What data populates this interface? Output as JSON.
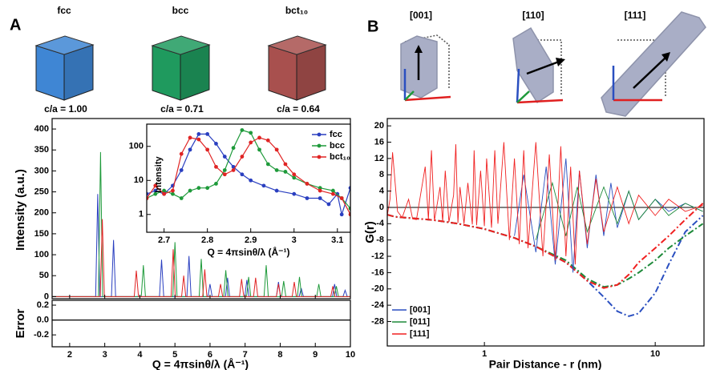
{
  "panel_labels": [
    "A",
    "B"
  ],
  "structures": [
    {
      "name": "fcc",
      "ratio": "c/a = 1.00",
      "color": "#3f86d4"
    },
    {
      "name": "bcc",
      "ratio": "c/a = 0.71",
      "color": "#1f9a5e"
    },
    {
      "name": "bct₁₀",
      "ratio": "c/a = 0.64",
      "color": "#a8504e"
    }
  ],
  "orientations": [
    "[001]",
    "[110]",
    "[111]"
  ],
  "chart_data": [
    {
      "type": "line",
      "y_label": "Intensity (a.u.)",
      "xlim": [
        1.5,
        10
      ],
      "ylim": [
        -5,
        425
      ],
      "yticks": [
        0,
        50,
        100,
        150,
        200,
        250,
        300,
        350,
        400
      ],
      "series": [
        {
          "color": "#2a3fc0",
          "x": [
            1.5,
            2.74,
            2.8,
            2.86,
            3.19,
            3.25,
            3.31,
            4.56,
            4.62,
            4.68,
            5.34,
            5.4,
            5.46,
            5.94,
            6.0,
            6.06,
            6.44,
            6.5,
            6.56,
            6.99,
            7.05,
            7.11,
            7.89,
            7.95,
            8.01,
            8.54,
            8.6,
            8.66,
            9.49,
            9.55,
            9.61,
            9.79,
            9.85,
            9.91,
            10
          ],
          "values": [
            0,
            0,
            245,
            0,
            0,
            135,
            0,
            0,
            88,
            0,
            0,
            97,
            0,
            0,
            30,
            0,
            0,
            45,
            0,
            0,
            40,
            0,
            0,
            35,
            0,
            0,
            20,
            0,
            0,
            30,
            0,
            0,
            15,
            0,
            0
          ]
        },
        {
          "color": "#1e9a3a",
          "x": [
            1.5,
            2.82,
            2.88,
            2.94,
            4.04,
            4.1,
            4.16,
            4.94,
            5.0,
            5.06,
            5.69,
            5.75,
            5.81,
            6.39,
            6.45,
            6.51,
            7.04,
            7.1,
            7.16,
            7.54,
            7.6,
            7.66,
            8.04,
            8.1,
            8.16,
            8.49,
            8.55,
            8.61,
            9.04,
            9.1,
            9.16,
            9.54,
            9.6,
            9.66,
            10
          ],
          "values": [
            0,
            0,
            345,
            0,
            0,
            75,
            0,
            0,
            130,
            0,
            0,
            90,
            0,
            0,
            63,
            0,
            0,
            47,
            0,
            0,
            75,
            0,
            0,
            37,
            0,
            0,
            47,
            0,
            0,
            30,
            0,
            0,
            25,
            0,
            0
          ]
        },
        {
          "color": "#e02424",
          "x": [
            1.5,
            2.87,
            2.93,
            2.99,
            3.84,
            3.9,
            3.96,
            4.89,
            4.95,
            5.01,
            5.19,
            5.25,
            5.31,
            5.79,
            5.85,
            5.91,
            6.24,
            6.3,
            6.36,
            6.84,
            6.9,
            6.96,
            7.24,
            7.3,
            7.36,
            7.89,
            7.95,
            8.01,
            8.34,
            8.4,
            8.46,
            9.44,
            9.5,
            9.56,
            10
          ],
          "values": [
            0,
            0,
            185,
            0,
            0,
            62,
            0,
            0,
            113,
            0,
            0,
            50,
            0,
            0,
            65,
            0,
            0,
            30,
            0,
            0,
            42,
            0,
            0,
            45,
            0,
            0,
            30,
            0,
            0,
            35,
            0,
            0,
            25,
            0,
            0
          ]
        }
      ]
    },
    {
      "type": "line",
      "x_label": "Q = 4πsinθ/λ (Å⁻¹)",
      "y_label": "Error",
      "xlim": [
        1.5,
        10
      ],
      "xticks": [
        2,
        3,
        4,
        5,
        6,
        7,
        8,
        9,
        10
      ],
      "ylim": [
        -0.36,
        0.265
      ],
      "yticks": [
        0.2,
        {
          "value": 0,
          "label": "0.0"
        },
        -0.2
      ],
      "series": [
        {
          "color": "#000000",
          "x": [
            1.5,
            10
          ],
          "values": [
            0,
            0
          ]
        }
      ]
    },
    {
      "type": "line",
      "x_label": "Q = 4πsinθ/λ (Å⁻¹)",
      "y_label": "Intensity",
      "ylog": true,
      "markers": true,
      "xlim": [
        2.66,
        3.13
      ],
      "xticks": [
        2.7,
        2.8,
        2.9,
        3.0,
        3.1
      ],
      "ylim": [
        0.3,
        450
      ],
      "yticks": [
        1,
        10,
        100
      ],
      "legend": "upper right",
      "series": [
        {
          "name": "fcc",
          "color": "#2a3fc0",
          "x": [
            2.66,
            2.68,
            2.7,
            2.72,
            2.74,
            2.76,
            2.78,
            2.8,
            2.82,
            2.84,
            2.86,
            2.88,
            2.9,
            2.93,
            2.96,
            3.0,
            3.03,
            3.06,
            3.08,
            3.1,
            3.11,
            3.13
          ],
          "values": [
            4,
            5,
            4,
            7,
            20,
            80,
            230,
            230,
            120,
            50,
            25,
            15,
            10,
            7,
            5,
            4,
            3,
            3,
            2,
            4,
            1,
            6
          ]
        },
        {
          "name": "bcc",
          "color": "#1e9a3a",
          "x": [
            2.66,
            2.68,
            2.7,
            2.72,
            2.74,
            2.76,
            2.78,
            2.8,
            2.82,
            2.84,
            2.86,
            2.88,
            2.9,
            2.92,
            2.94,
            2.96,
            2.98,
            3.0,
            3.03,
            3.06,
            3.09,
            3.11,
            3.13
          ],
          "values": [
            3,
            4,
            5,
            4,
            3,
            5,
            6,
            6,
            8,
            20,
            90,
            300,
            250,
            80,
            30,
            20,
            18,
            12,
            8,
            6,
            5,
            3,
            1.5
          ]
        },
        {
          "name": "bct₁₀",
          "color": "#e02424",
          "x": [
            2.66,
            2.68,
            2.7,
            2.72,
            2.74,
            2.76,
            2.78,
            2.8,
            2.82,
            2.84,
            2.86,
            2.88,
            2.9,
            2.92,
            2.94,
            2.96,
            2.98,
            3.0,
            3.03,
            3.06,
            3.09,
            3.11,
            3.13
          ],
          "values": [
            3,
            7,
            4,
            5,
            60,
            180,
            160,
            80,
            25,
            15,
            20,
            50,
            130,
            180,
            150,
            80,
            30,
            15,
            8,
            5,
            4,
            3,
            1
          ]
        }
      ]
    },
    {
      "type": "line",
      "x_label": "Pair Distance - r (nm)",
      "y_label": "G(r)",
      "xlog": true,
      "xlim": [
        0.27,
        19.3
      ],
      "xticks": [
        1,
        10
      ],
      "ylim": [
        -34,
        21.8
      ],
      "yticks": [
        20,
        16,
        12,
        8,
        4,
        0,
        -4,
        -8,
        -12,
        -16,
        -20,
        -24,
        -28
      ],
      "legend": "lower left",
      "baseline_x": [
        0.27,
        0.3,
        0.5,
        0.7,
        1,
        1.5,
        2,
        3,
        4,
        5,
        6,
        7,
        8,
        10,
        12,
        15,
        19
      ],
      "series": [
        {
          "name": "[001]",
          "color": "#2a4fc0",
          "x": [
            1.5,
            1.7,
            2,
            2.3,
            2.6,
            3,
            3.3,
            3.6,
            4,
            4.5,
            5,
            5.5,
            6,
            7,
            8,
            10,
            12,
            15,
            19
          ],
          "values": [
            -7,
            8,
            -11,
            10,
            -14,
            12,
            -16,
            9,
            -10,
            8,
            -7,
            6,
            -5,
            4,
            -3,
            2,
            -1,
            1,
            -1
          ],
          "baseline": [
            -1.8,
            -2.3,
            -3.1,
            -4,
            -5.3,
            -7.5,
            -9.6,
            -13.5,
            -18,
            -22,
            -25.5,
            -26.7,
            -26,
            -21,
            -14,
            -6,
            -2
          ]
        },
        {
          "name": "[011]",
          "color": "#1e8a3a",
          "x": [
            2,
            2.5,
            3,
            3.5,
            4,
            5,
            6,
            7,
            8,
            10,
            12,
            15,
            19
          ],
          "values": [
            -8,
            6,
            -7,
            5,
            -6,
            5,
            -4,
            4,
            -3,
            2,
            -2,
            1,
            -1
          ],
          "baseline": [
            -1.8,
            -2.3,
            -3.1,
            -4,
            -5.3,
            -7.5,
            -9.6,
            -13,
            -17.5,
            -19.5,
            -19,
            -17.5,
            -16,
            -13,
            -10,
            -7,
            -4
          ]
        },
        {
          "name": "[111]",
          "color": "#f02020",
          "x": [
            0.27,
            0.28,
            0.29,
            0.31,
            0.33,
            0.36,
            0.38,
            0.4,
            0.45,
            0.47,
            0.49,
            0.51,
            0.55,
            0.57,
            0.59,
            0.62,
            0.66,
            0.68,
            0.7,
            0.72,
            0.76,
            0.8,
            0.85,
            0.87,
            0.9,
            0.95,
            1.0,
            1.03,
            1.1,
            1.15,
            1.2,
            1.3,
            1.4,
            1.5,
            1.6,
            1.7,
            1.8,
            2.0,
            2.2,
            2.4,
            2.6,
            2.8,
            3.0,
            3.2,
            3.4,
            3.6,
            4,
            4.5,
            5,
            6,
            7,
            8,
            10,
            12,
            15,
            19
          ],
          "values": [
            -2,
            2,
            13.5,
            -1,
            -2.5,
            2,
            -2.8,
            -3,
            10,
            -3,
            14,
            -3.3,
            5,
            -3.5,
            9,
            -3.6,
            3,
            15.5,
            -3.8,
            5,
            -4,
            6,
            -4.2,
            14,
            -4.4,
            9,
            -4.6,
            12,
            -5,
            14,
            -4,
            16,
            -8,
            12,
            -9,
            14,
            -10,
            16,
            -12,
            13,
            -13,
            15,
            -12,
            10,
            -14,
            9,
            -9,
            7,
            -6,
            5,
            -4,
            3,
            -2,
            2,
            -1,
            0.5
          ],
          "baseline": [
            -1.8,
            -2.3,
            -3.1,
            -4,
            -5.3,
            -7.5,
            -9.6,
            -13.5,
            -18,
            -19.8,
            -19,
            -16.5,
            -13.5,
            -10,
            -7,
            -3,
            1
          ]
        }
      ]
    }
  ]
}
